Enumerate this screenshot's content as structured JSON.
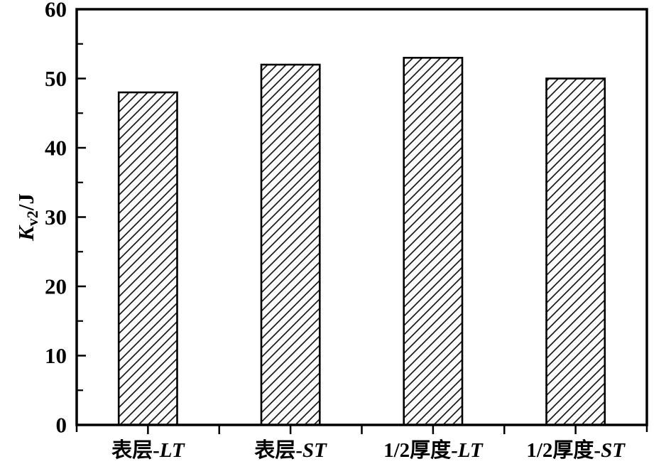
{
  "figure": {
    "background": "#ffffff",
    "axis_color": "#000000"
  },
  "chart_data": {
    "type": "bar",
    "title": "",
    "categories": [
      "表层-LT",
      "表层-ST",
      "1/2厚度-LT",
      "1/2厚度-ST"
    ],
    "category_parts": [
      {
        "upright": "表层-",
        "italic": "LT"
      },
      {
        "upright": "表层-",
        "italic": "ST"
      },
      {
        "upright": "1/2厚度-",
        "italic": "LT"
      },
      {
        "upright": "1/2厚度-",
        "italic": "ST"
      }
    ],
    "values": [
      48,
      52,
      53,
      50
    ],
    "xlabel": "",
    "ylabel": "Kv2/J",
    "ylabel_parts": {
      "italic": "K",
      "subscript": "v2",
      "rest": "/J"
    },
    "ylim": [
      0,
      60
    ],
    "yticks": [
      0,
      10,
      20,
      30,
      40,
      50,
      60
    ],
    "ytick_labels": [
      "0",
      "10",
      "20",
      "30",
      "40",
      "50",
      "60"
    ],
    "yminor_step": 5,
    "grid": false,
    "legend": "none",
    "frame": "full-box",
    "bar_style": {
      "fill": "diagonal-hatch",
      "hatch_color": "#1a1a1a",
      "edge_color": "#000000",
      "background": "#ffffff",
      "bar_width_fraction": 0.41
    }
  }
}
